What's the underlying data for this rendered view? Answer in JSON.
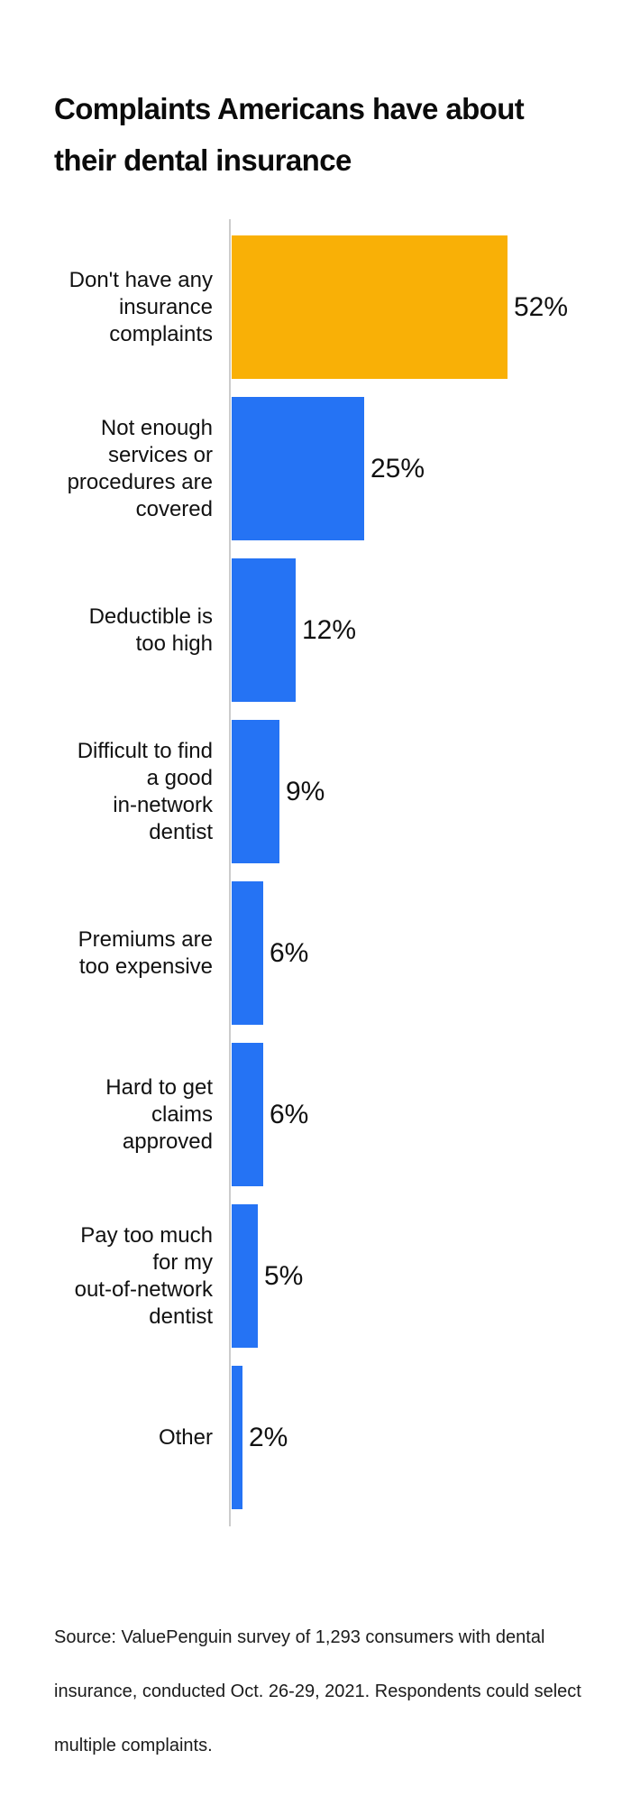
{
  "header": {
    "title": "Complaints Americans have about\ntheir dental insurance"
  },
  "chart_data": {
    "type": "bar",
    "orientation": "horizontal",
    "title": "Complaints Americans have about their dental insurance",
    "categories": [
      "Don't have any insurance complaints",
      "Not enough services or procedures are covered",
      "Deductible is too high",
      "Difficult to find a good in-network dentist",
      "Premiums are too expensive",
      "Hard to get claims approved",
      "Pay too much for my out-of-network dentist",
      "Other"
    ],
    "values": [
      52,
      25,
      12,
      9,
      6,
      6,
      5,
      2
    ],
    "unit": "%",
    "xlim": [
      0,
      57
    ],
    "grid": false,
    "legend": false,
    "colors": {
      "highlight_bar": "#F9B006",
      "default_bar": "#2573F4",
      "axis_line": "#CCCCCC",
      "text": "#111111"
    },
    "items": [
      {
        "label_lines": "Don't have any\ninsurance\ncomplaints",
        "value": 52,
        "value_label": "52%",
        "color": "#F9B006"
      },
      {
        "label_lines": "Not enough\nservices or\nprocedures are\ncovered",
        "value": 25,
        "value_label": "25%",
        "color": "#2573F4"
      },
      {
        "label_lines": "Deductible is\ntoo high",
        "value": 12,
        "value_label": "12%",
        "color": "#2573F4"
      },
      {
        "label_lines": "Difficult to find\na good\nin-network\ndentist",
        "value": 9,
        "value_label": "9%",
        "color": "#2573F4"
      },
      {
        "label_lines": "Premiums are\ntoo expensive",
        "value": 6,
        "value_label": "6%",
        "color": "#2573F4"
      },
      {
        "label_lines": "Hard to get\nclaims\napproved",
        "value": 6,
        "value_label": "6%",
        "color": "#2573F4"
      },
      {
        "label_lines": "Pay too much\nfor my\nout-of-network\ndentist",
        "value": 5,
        "value_label": "5%",
        "color": "#2573F4"
      },
      {
        "label_lines": "Other",
        "value": 2,
        "value_label": "2%",
        "color": "#2573F4"
      }
    ]
  },
  "footer": {
    "source": "Source: ValuePenguin survey of 1,293 consumers with dental\ninsurance, conducted Oct. 26-29, 2021. Respondents could select\nmultiple complaints."
  }
}
